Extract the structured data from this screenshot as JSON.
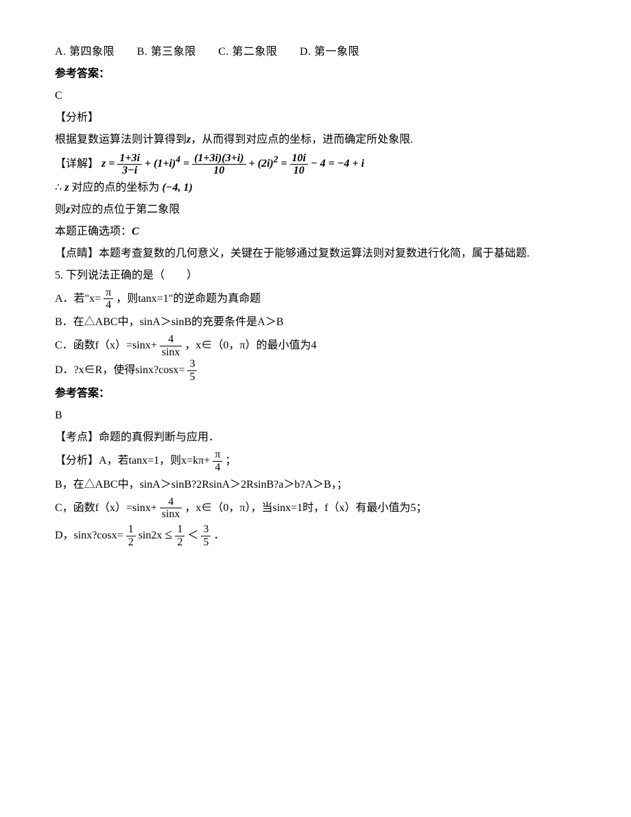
{
  "q4": {
    "options": {
      "A": "A. 第四象限",
      "B": "B. 第三象限",
      "C": "C. 第二象限",
      "D": "D. 第一象限"
    },
    "answer_label": "参考答案：",
    "answer_value": "C",
    "analysis_label": "【分析】",
    "analysis_text_a": "根据复数运算法则计算得到",
    "analysis_text_b": "，从而得到对应点的坐标，进而确定所处象限.",
    "detail_label": "【详解】",
    "equation": {
      "prefix": "z =",
      "f1_num": "1+3i",
      "f1_den": "3−i",
      "plus1": "+ (1+i)",
      "exp1": "4",
      "eq1": " = ",
      "f2_num": "(1+3i)(3+i)",
      "f2_den": "10",
      "plus2": "+ (2i)",
      "exp2": "2",
      "eq2": " = ",
      "f3_num": "10i",
      "f3_den": "10",
      "tail": " − 4 = −4 + i"
    },
    "there_prefix": "∴",
    "there_text_a": "对应的点的坐标为",
    "coord": "(−4, 1)",
    "line_then_a": "则",
    "line_then_b": "对应的点位于第二象限",
    "line_correct_a": "本题正确选项：",
    "line_correct_b": "C",
    "comment_label": "【点睛】",
    "comment_text": "本题考查复数的几何意义，关键在于能够通过复数运算法则对复数进行化简，属于基础题."
  },
  "q5": {
    "stem": "5. 下列说法正确的是（　　）",
    "optA_a": "A．若\"x=",
    "optA_frac_num": "π",
    "optA_frac_den": "4",
    "optA_b": "，则tanx=1\"的逆命题为真命题",
    "optB": "B．在△ABC中，sinA＞sinB的充要条件是A＞B",
    "optC_a": "C．函数f（x）=sinx+",
    "optC_frac_num": "4",
    "optC_frac_den": "sinx",
    "optC_b": "，x∈（0，π）的最小值为4",
    "optD_a": "D．?x∈R，使得sinx?cosx=",
    "optD_frac_num": "3",
    "optD_frac_den": "5",
    "answer_label": "参考答案：",
    "answer_value": "B",
    "kaodian": "【考点】命题的真假判断与应用．",
    "analysis_label": "【分析】",
    "anaA_a": "A，若tanx=1，则x=kπ+",
    "anaA_frac_num": "π",
    "anaA_frac_den": "4",
    "anaA_b": "；",
    "anaB": "B，在△ABC中，sinA＞sinB?2RsinA＞2RsinB?a＞b?A＞B，；",
    "anaC_a": "C，函数f（x）=sinx+",
    "anaC_frac_num": "4",
    "anaC_frac_den": "sinx",
    "anaC_b": "，x∈（0，π），当sinx=1时，f（x）有最小值为5；",
    "anaD_a": "D，sinx?cosx=",
    "anaD_f1_num": "1",
    "anaD_f1_den": "2",
    "anaD_mid": "sin2x",
    "anaD_le": "≤",
    "anaD_f2_num": "1",
    "anaD_f2_den": "2",
    "anaD_lt": "＜",
    "anaD_f3_num": "3",
    "anaD_f3_den": "5",
    "anaD_b": "．"
  }
}
